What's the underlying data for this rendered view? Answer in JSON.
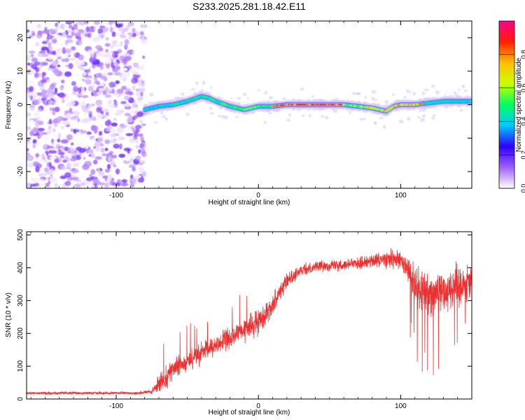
{
  "title": "S233.2025.281.18.42.E11",
  "chart_data": [
    {
      "type": "heatmap",
      "title": "S233.2025.281.18.42.E11",
      "xlabel": "Height of straight line (km)",
      "ylabel": "Frequency (Hz)",
      "xlim": [
        -163,
        150
      ],
      "ylim": [
        -25,
        25
      ],
      "xticks": [
        -100,
        0,
        100
      ],
      "yticks": [
        -20,
        -10,
        0,
        10,
        20
      ],
      "noise_region_x": [
        -163,
        -80
      ],
      "signal_ridge": {
        "x": [
          -80,
          -70,
          -60,
          -50,
          -40,
          -35,
          -30,
          -20,
          -10,
          0,
          10,
          20,
          40,
          60,
          70,
          80,
          90,
          95,
          100,
          110,
          120,
          130,
          140,
          150
        ],
        "y": [
          -1.5,
          -0.5,
          0.0,
          1.0,
          2.5,
          2.0,
          1.0,
          -0.5,
          -1.5,
          -0.5,
          -0.5,
          0.0,
          0.0,
          0.0,
          -0.5,
          -1.0,
          -2.0,
          -0.5,
          0.0,
          0.0,
          0.5,
          1.0,
          1.0,
          1.0
        ]
      },
      "colorbar": {
        "label": "Normalized spectral amplitude",
        "range": [
          0,
          1
        ],
        "ticks": [
          "0.0",
          "0.2",
          "0.4",
          "0.6",
          "0.8"
        ],
        "colors": [
          "#ffffff",
          "#a060ff",
          "#3000ff",
          "#00c8ff",
          "#00ff60",
          "#c8ff00",
          "#ffc000",
          "#ff2000",
          "#ff0090"
        ]
      }
    },
    {
      "type": "line",
      "xlabel": "Height of straight line (km)",
      "ylabel": "SNR (10 * v/v)",
      "xlim": [
        -163,
        150
      ],
      "ylim": [
        0,
        510
      ],
      "xticks": [
        -100,
        0,
        100
      ],
      "yticks": [
        0,
        100,
        200,
        300,
        400,
        500
      ],
      "series": [
        {
          "name": "SNR",
          "color": "#ee3030",
          "x": [
            -163,
            -140,
            -120,
            -100,
            -85,
            -75,
            -70,
            -65,
            -60,
            -50,
            -40,
            -30,
            -20,
            -10,
            0,
            10,
            15,
            20,
            30,
            40,
            60,
            80,
            90,
            100,
            105,
            110,
            120,
            130,
            140,
            150
          ],
          "y": [
            18,
            18,
            18,
            18,
            18,
            22,
            45,
            70,
            90,
            115,
            140,
            165,
            185,
            210,
            235,
            290,
            330,
            360,
            390,
            405,
            410,
            420,
            425,
            420,
            395,
            340,
            325,
            330,
            350,
            360
          ],
          "noise_amplitude": [
            6,
            6,
            6,
            6,
            6,
            10,
            40,
            45,
            45,
            45,
            45,
            45,
            45,
            50,
            50,
            45,
            40,
            35,
            25,
            25,
            25,
            30,
            40,
            45,
            60,
            90,
            100,
            90,
            85,
            80
          ]
        }
      ]
    }
  ]
}
